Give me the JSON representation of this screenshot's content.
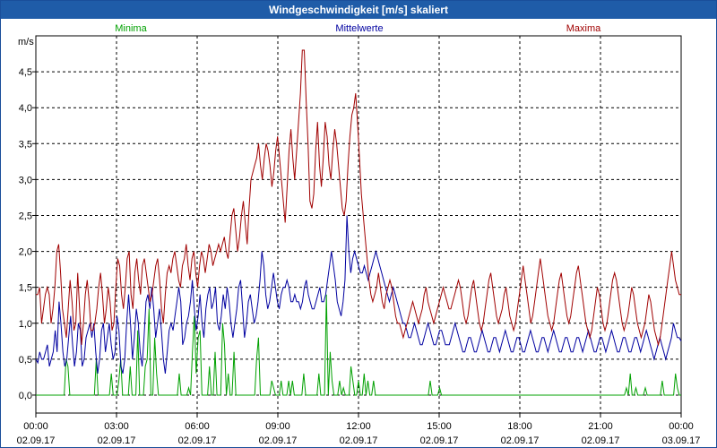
{
  "title": "Windgeschwindigkeit [m/s] skaliert",
  "colors": {
    "min": "#00a000",
    "mean": "#0000a0",
    "max": "#a00000",
    "titlebar": "#1f5ca8"
  },
  "chart_data": {
    "type": "line",
    "title": "Windgeschwindigkeit [m/s] skaliert",
    "ylabel": "m/s",
    "ylim": [
      -0.25,
      5.0
    ],
    "xlim": [
      0,
      24
    ],
    "yticks": [
      {
        "v": 0,
        "label": "0,0"
      },
      {
        "v": 0.5,
        "label": "0,5"
      },
      {
        "v": 1.0,
        "label": "1,0"
      },
      {
        "v": 1.5,
        "label": "1,5"
      },
      {
        "v": 2.0,
        "label": "2,0"
      },
      {
        "v": 2.5,
        "label": "2,5"
      },
      {
        "v": 3.0,
        "label": "3,0"
      },
      {
        "v": 3.5,
        "label": "3,5"
      },
      {
        "v": 4.0,
        "label": "4,0"
      },
      {
        "v": 4.5,
        "label": "4,5"
      }
    ],
    "xticks": [
      {
        "h": 0,
        "time": "00:00",
        "date": "02.09.17"
      },
      {
        "h": 3,
        "time": "03:00",
        "date": "02.09.17"
      },
      {
        "h": 6,
        "time": "06:00",
        "date": "02.09.17"
      },
      {
        "h": 9,
        "time": "09:00",
        "date": "02.09.17"
      },
      {
        "h": 12,
        "time": "12:00",
        "date": "02.09.17"
      },
      {
        "h": 15,
        "time": "15:00",
        "date": "02.09.17"
      },
      {
        "h": 18,
        "time": "18:00",
        "date": "02.09.17"
      },
      {
        "h": 21,
        "time": "21:00",
        "date": "02.09.17"
      },
      {
        "h": 24,
        "time": "00:00",
        "date": "03.09.17"
      }
    ],
    "series": [
      {
        "name": "Minima",
        "key": "min",
        "values": [
          0,
          0,
          0,
          0,
          0,
          0,
          0,
          0,
          0,
          0,
          0,
          0,
          0,
          0,
          0,
          0,
          0.5,
          0.4,
          0,
          0,
          0,
          0,
          0,
          0,
          0,
          0,
          0,
          0,
          0,
          0,
          0,
          0,
          0.5,
          0,
          0,
          0,
          0,
          0,
          0,
          0,
          0.3,
          0,
          0,
          0,
          0.2,
          0.5,
          0,
          0,
          0,
          0,
          0.4,
          0,
          0,
          0,
          0.9,
          0,
          0,
          0,
          0.4,
          0.5,
          1.2,
          0,
          0,
          0.8,
          0.3,
          0,
          0,
          0,
          0,
          0,
          0,
          0,
          0,
          0,
          0,
          0,
          0.3,
          0,
          0,
          0,
          0,
          0.1,
          0,
          0.6,
          1.1,
          0.3,
          0.8,
          0.9,
          0,
          0,
          0,
          0,
          0.4,
          0,
          0,
          0.6,
          0,
          0,
          0,
          1.0,
          0.7,
          0,
          0.3,
          0,
          0,
          0.6,
          0,
          0,
          0,
          0,
          0,
          0,
          0,
          0,
          0,
          0,
          0,
          0.5,
          0.8,
          0,
          0,
          0,
          0,
          0,
          0,
          0.2,
          0.1,
          0,
          0,
          0,
          0.2,
          0,
          0,
          0,
          0.2,
          0,
          0.2,
          0,
          0,
          0,
          0,
          0,
          0.3,
          0,
          0,
          0,
          0,
          0,
          0,
          0,
          0.3,
          0,
          0,
          0,
          1.4,
          0,
          0.6,
          0.2,
          0,
          0,
          0,
          0.2,
          0,
          0.1,
          0,
          0,
          0,
          0.4,
          0.2,
          0,
          0,
          0.2,
          0,
          0,
          0.3,
          0,
          0.2,
          0,
          0,
          0.2,
          0,
          0,
          0,
          0,
          0,
          0,
          0,
          0,
          0,
          0,
          0,
          0,
          0,
          0,
          0,
          0,
          0,
          0,
          0,
          0,
          0,
          0,
          0,
          0,
          0,
          0,
          0,
          0,
          0,
          0.2,
          0,
          0,
          0,
          0,
          0.1,
          0,
          0,
          0,
          0,
          0,
          0,
          0,
          0,
          0,
          0,
          0,
          0,
          0,
          0,
          0,
          0,
          0,
          0,
          0,
          0,
          0,
          0,
          0,
          0,
          0,
          0,
          0,
          0,
          0,
          0,
          0,
          0,
          0,
          0,
          0,
          0,
          0,
          0,
          0,
          0,
          0,
          0,
          0,
          0,
          0,
          0,
          0,
          0,
          0,
          0,
          0,
          0,
          0,
          0,
          0,
          0,
          0,
          0,
          0,
          0,
          0,
          0,
          0,
          0,
          0,
          0,
          0,
          0,
          0,
          0,
          0,
          0,
          0,
          0,
          0,
          0,
          0,
          0,
          0,
          0,
          0,
          0,
          0,
          0,
          0,
          0,
          0,
          0,
          0,
          0,
          0,
          0,
          0,
          0,
          0,
          0,
          0,
          0,
          0.1,
          0,
          0.3,
          0,
          0,
          0.1,
          0,
          0,
          0,
          0,
          0.1,
          0,
          0,
          0,
          0,
          0,
          0,
          0,
          0,
          0.2,
          0,
          0,
          0,
          0,
          0,
          0,
          0.3,
          0.1,
          0,
          0
        ]
      },
      {
        "name": "Mittelwerte",
        "key": "mean",
        "values": [
          0.5,
          0.45,
          0.6,
          0.5,
          0.5,
          0.6,
          0.7,
          0.4,
          0.5,
          0.6,
          0.9,
          0.6,
          1.3,
          1.0,
          0.6,
          0.4,
          0.5,
          0.8,
          1.1,
          0.7,
          0.4,
          0.6,
          1.0,
          0.9,
          0.4,
          0.5,
          0.8,
          0.9,
          1.0,
          0.8,
          1.0,
          0.6,
          0.3,
          0.5,
          0.9,
          1.0,
          0.6,
          0.8,
          1.0,
          0.7,
          0.5,
          0.6,
          1.1,
          0.9,
          0.4,
          0.3,
          0.5,
          1.0,
          1.4,
          1.0,
          0.5,
          0.8,
          1.2,
          1.0,
          0.6,
          0.4,
          0.8,
          1.3,
          1.4,
          1.2,
          1.5,
          1.2,
          0.8,
          1.0,
          1.2,
          0.9,
          0.5,
          0.3,
          0.6,
          0.9,
          1.0,
          0.9,
          1.1,
          1.3,
          1.5,
          1.3,
          0.7,
          0.8,
          1.0,
          1.1,
          1.3,
          1.6,
          1.2,
          0.9,
          1.1,
          1.4,
          1.0,
          0.8,
          1.2,
          1.4,
          1.5,
          1.2,
          1.3,
          1.5,
          1.0,
          0.9,
          1.1,
          1.4,
          1.2,
          1.5,
          1.3,
          1.0,
          0.8,
          1.0,
          1.2,
          1.5,
          1.6,
          1.2,
          0.8,
          1.0,
          1.3,
          1.4,
          1.2,
          1.0,
          1.1,
          1.3,
          1.6,
          2.0,
          1.8,
          1.4,
          1.2,
          1.3,
          1.5,
          1.7,
          1.5,
          1.3,
          1.2,
          1.4,
          1.5,
          1.5,
          1.6,
          1.5,
          1.3,
          1.3,
          1.4,
          1.3,
          1.3,
          1.2,
          1.3,
          1.5,
          1.6,
          1.4,
          1.3,
          1.2,
          1.2,
          1.3,
          1.4,
          1.5,
          1.3,
          1.3,
          1.4,
          1.6,
          1.8,
          2.0,
          1.8,
          1.6,
          1.3,
          1.2,
          1.1,
          1.3,
          1.6,
          2.5,
          2.0,
          1.7,
          1.9,
          2.0,
          1.9,
          1.8,
          1.7,
          1.7,
          1.8,
          1.7,
          1.6,
          1.7,
          1.8,
          1.9,
          2.0,
          1.9,
          1.8,
          1.7,
          1.6,
          1.5,
          1.4,
          1.3,
          1.4,
          1.5,
          1.4,
          1.3,
          1.2,
          1.1,
          1.0,
          1.0,
          0.9,
          0.8,
          0.8,
          0.9,
          1.0,
          0.9,
          0.8,
          0.7,
          0.7,
          0.8,
          0.9,
          1.0,
          0.9,
          0.8,
          0.7,
          0.7,
          0.8,
          0.9,
          0.9,
          0.8,
          0.7,
          0.7,
          0.7,
          0.8,
          0.9,
          1.0,
          0.9,
          0.8,
          0.7,
          0.6,
          0.6,
          0.7,
          0.8,
          0.8,
          0.7,
          0.6,
          0.6,
          0.7,
          0.8,
          0.9,
          0.8,
          0.7,
          0.6,
          0.6,
          0.7,
          0.8,
          0.8,
          0.7,
          0.6,
          0.7,
          0.8,
          0.9,
          0.8,
          0.7,
          0.6,
          0.6,
          0.7,
          0.8,
          0.8,
          0.7,
          0.6,
          0.6,
          0.7,
          0.8,
          0.9,
          0.8,
          0.7,
          0.6,
          0.6,
          0.7,
          0.8,
          0.8,
          0.7,
          0.6,
          0.7,
          0.8,
          0.9,
          0.8,
          0.7,
          0.6,
          0.6,
          0.7,
          0.8,
          0.8,
          0.7,
          0.6,
          0.6,
          0.7,
          0.8,
          0.8,
          0.7,
          0.6,
          0.7,
          0.8,
          0.9,
          0.8,
          0.7,
          0.6,
          0.6,
          0.7,
          0.8,
          0.8,
          0.7,
          0.6,
          0.7,
          0.8,
          0.9,
          0.8,
          0.7,
          0.6,
          0.6,
          0.7,
          0.8,
          0.8,
          0.7,
          0.6,
          0.6,
          0.7,
          0.8,
          0.8,
          0.7,
          0.6,
          0.7,
          0.8,
          0.9,
          0.8,
          0.7,
          0.6,
          0.5,
          0.6,
          0.7,
          0.8,
          0.7,
          0.6,
          0.5,
          0.6,
          0.7,
          0.8,
          1.0,
          0.9,
          0.8,
          0.8,
          0.75
        ]
      },
      {
        "name": "Maxima",
        "key": "max",
        "values": [
          1.4,
          1.4,
          1.5,
          1.0,
          1.2,
          1.4,
          1.5,
          1.4,
          1.0,
          1.2,
          1.5,
          2.0,
          2.1,
          1.7,
          1.2,
          1.0,
          0.8,
          1.2,
          1.6,
          1.3,
          0.9,
          1.0,
          1.7,
          1.2,
          0.7,
          1.0,
          1.4,
          1.6,
          1.3,
          0.9,
          0.9,
          1.0,
          1.2,
          1.5,
          1.7,
          1.4,
          1.0,
          1.2,
          1.5,
          1.3,
          0.9,
          1.0,
          1.5,
          1.9,
          1.8,
          1.4,
          1.2,
          1.5,
          1.9,
          2.0,
          1.4,
          1.2,
          1.7,
          1.9,
          1.6,
          1.4,
          1.8,
          1.9,
          1.7,
          1.5,
          1.3,
          1.4,
          1.6,
          1.8,
          1.9,
          1.6,
          1.2,
          1.0,
          1.4,
          1.7,
          1.8,
          1.7,
          1.9,
          2.0,
          1.8,
          1.6,
          1.5,
          1.8,
          1.9,
          2.1,
          1.8,
          1.6,
          1.9,
          2.0,
          1.7,
          1.5,
          1.8,
          2.0,
          1.9,
          1.7,
          1.9,
          2.1,
          2.0,
          1.8,
          1.9,
          2.0,
          2.1,
          2.0,
          2.1,
          2.2,
          2.0,
          1.9,
          2.2,
          2.5,
          2.6,
          2.3,
          2.0,
          2.2,
          2.5,
          2.7,
          2.4,
          2.1,
          2.6,
          3.0,
          3.1,
          3.2,
          3.3,
          3.5,
          3.2,
          3.0,
          3.3,
          3.5,
          3.4,
          3.2,
          2.9,
          3.1,
          3.4,
          3.6,
          3.3,
          3.0,
          2.7,
          2.4,
          2.9,
          3.4,
          3.7,
          3.3,
          3.0,
          3.4,
          3.8,
          4.2,
          4.8,
          4.8,
          4.1,
          3.5,
          2.7,
          2.6,
          2.8,
          3.4,
          3.8,
          3.2,
          2.9,
          3.3,
          3.8,
          3.6,
          3.2,
          3.0,
          3.4,
          3.7,
          3.5,
          3.2,
          2.9,
          2.6,
          2.5,
          2.7,
          3.2,
          3.6,
          3.9,
          4.0,
          4.2,
          3.8,
          3.3,
          2.8,
          2.5,
          2.2,
          1.9,
          1.6,
          1.4,
          1.3,
          1.4,
          1.5,
          1.7,
          1.5,
          1.3,
          1.2,
          1.4,
          1.5,
          1.6,
          1.5,
          1.3,
          1.1,
          1.0,
          1.0,
          0.9,
          0.8,
          0.9,
          1.0,
          1.1,
          1.2,
          1.3,
          1.2,
          1.1,
          1.0,
          1.1,
          1.2,
          1.4,
          1.5,
          1.3,
          1.2,
          1.1,
          1.0,
          1.1,
          1.2,
          1.3,
          1.4,
          1.5,
          1.4,
          1.3,
          1.2,
          1.2,
          1.3,
          1.4,
          1.5,
          1.6,
          1.5,
          1.3,
          1.1,
          1.0,
          1.1,
          1.3,
          1.5,
          1.6,
          1.4,
          1.2,
          1.0,
          0.9,
          1.0,
          1.2,
          1.4,
          1.6,
          1.7,
          1.5,
          1.3,
          1.1,
          1.0,
          1.1,
          1.2,
          1.4,
          1.5,
          1.3,
          1.1,
          1.0,
          0.9,
          1.0,
          1.2,
          1.4,
          1.6,
          1.8,
          1.6,
          1.4,
          1.2,
          1.0,
          1.1,
          1.3,
          1.5,
          1.7,
          1.9,
          1.7,
          1.5,
          1.3,
          1.1,
          1.0,
          0.9,
          1.0,
          1.2,
          1.4,
          1.6,
          1.7,
          1.5,
          1.3,
          1.1,
          1.0,
          1.1,
          1.3,
          1.5,
          1.7,
          1.8,
          1.6,
          1.4,
          1.2,
          1.0,
          0.9,
          0.8,
          0.9,
          1.1,
          1.3,
          1.5,
          1.4,
          1.2,
          1.0,
          0.9,
          1.0,
          1.2,
          1.4,
          1.6,
          1.7,
          1.6,
          1.4,
          1.2,
          1.0,
          0.9,
          1.0,
          1.1,
          1.3,
          1.5,
          1.4,
          1.2,
          1.0,
          0.9,
          0.8,
          0.9,
          1.0,
          1.2,
          1.4,
          1.3,
          1.1,
          0.9,
          0.8,
          0.7,
          0.8,
          1.0,
          1.2,
          1.4,
          1.6,
          1.8,
          2.0,
          1.8,
          1.6,
          1.5,
          1.4,
          1.4
        ]
      }
    ]
  }
}
